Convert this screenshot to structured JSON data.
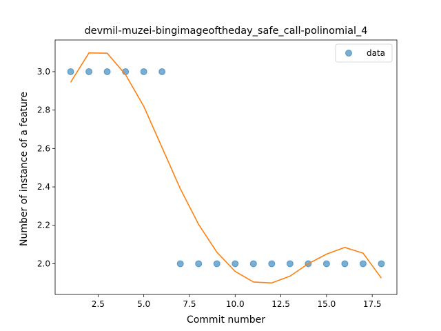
{
  "chart_data": {
    "type": "scatter",
    "title": "devmil-muzei-bingimageoftheday_safe_call-polinomial_4",
    "xlabel": "Commit number",
    "ylabel": "Number of instance of a feature",
    "xlim": [
      0.15,
      18.85
    ],
    "ylim": [
      1.84,
      3.165
    ],
    "xticks": [
      2.5,
      5.0,
      7.5,
      10.0,
      12.5,
      15.0,
      17.5
    ],
    "xtick_labels": [
      "2.5",
      "5.0",
      "7.5",
      "10.0",
      "12.5",
      "15.0",
      "17.5"
    ],
    "yticks": [
      2.0,
      2.2,
      2.4,
      2.6,
      2.8,
      3.0
    ],
    "ytick_labels": [
      "2.0",
      "2.2",
      "2.4",
      "2.6",
      "2.8",
      "3.0"
    ],
    "legend": {
      "position": "top-right",
      "entries": [
        "data"
      ]
    },
    "grid": false,
    "series": [
      {
        "name": "data",
        "kind": "scatter",
        "color": "#1f77b4",
        "x": [
          1,
          2,
          3,
          4,
          5,
          6,
          7,
          8,
          9,
          10,
          11,
          12,
          13,
          14,
          15,
          16,
          17,
          18
        ],
        "y": [
          3,
          3,
          3,
          3,
          3,
          3,
          2,
          2,
          2,
          2,
          2,
          2,
          2,
          2,
          2,
          2,
          2,
          2
        ]
      },
      {
        "kind": "line",
        "color": "#ff7f0e",
        "x": [
          1,
          2,
          3,
          4,
          5,
          6,
          7,
          8,
          9,
          10,
          11,
          12,
          13,
          14,
          15,
          16,
          17,
          18
        ],
        "y": [
          2.945,
          3.098,
          3.096,
          2.985,
          2.82,
          2.605,
          2.39,
          2.205,
          2.06,
          1.96,
          1.905,
          1.9,
          1.935,
          2.0,
          2.05,
          2.085,
          2.055,
          1.925
        ]
      }
    ]
  }
}
